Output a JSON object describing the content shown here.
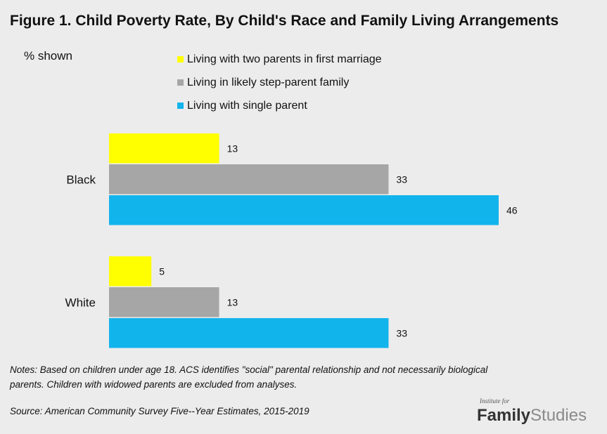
{
  "title": "Figure 1. Child Poverty Rate, By Child's Race and Family Living Arrangements",
  "unit_label": "% shown",
  "colors": {
    "background": "#ececec",
    "two_parents": "#ffff00",
    "step_parent": "#a6a6a6",
    "single_parent": "#12b4ec"
  },
  "notes": "Notes: Based on children under age 18. ACS identifies \"social\" parental relationship and not necessarily biological parents. Children with widowed parents are excluded from analyses.",
  "source": "Source: American Community Survey Five--Year Estimates, 2015-2019",
  "brand": {
    "tagline": "Institute for",
    "name_part1": "Family",
    "name_part2": "Studies"
  },
  "chart_data": {
    "type": "bar",
    "orientation": "horizontal",
    "title": "Figure 1. Child Poverty Rate, By Child's Race and Family Living Arrangements",
    "xlabel": "",
    "ylabel": "",
    "xlim": [
      0,
      46
    ],
    "grid": false,
    "legend_position": "top",
    "categories": [
      "Black",
      "White"
    ],
    "series": [
      {
        "name": "Living with two parents in first marriage",
        "color": "#ffff00",
        "values": [
          13,
          5
        ]
      },
      {
        "name": "Living in likely step-parent family",
        "color": "#a6a6a6",
        "values": [
          33,
          13
        ]
      },
      {
        "name": "Living with single parent",
        "color": "#12b4ec",
        "values": [
          46,
          33
        ]
      }
    ]
  }
}
